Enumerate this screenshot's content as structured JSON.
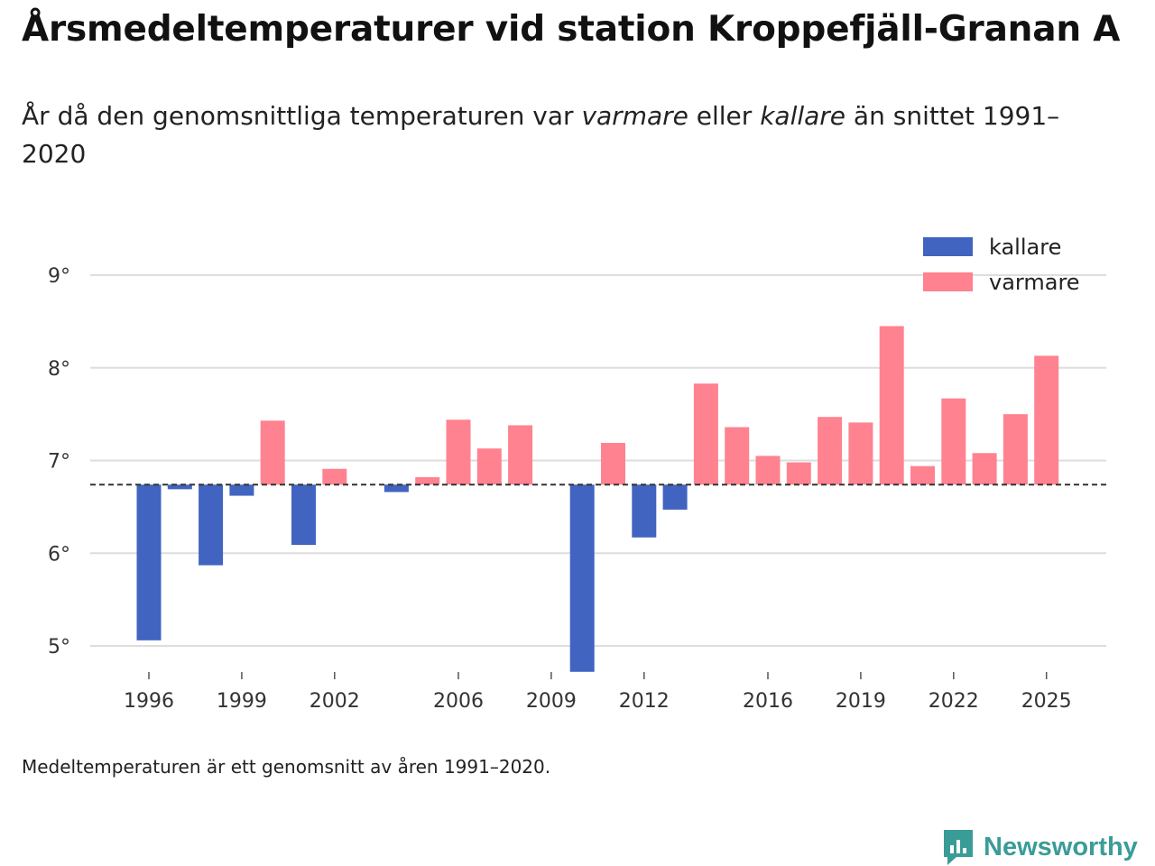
{
  "chart_data": {
    "type": "bar",
    "title": "Årsmedeltemperaturer vid station Kroppefjäll-Granan A",
    "subtitle_parts": [
      "År då den genomsnittliga temperaturen var ",
      "varmare",
      " eller ",
      "kallare",
      " än snittet 1991–2020"
    ],
    "note": "Medeltemperaturen är ett genomsnitt av åren 1991–2020.",
    "baseline": 6.74,
    "ylim": [
      4.7,
      9.5
    ],
    "xlim": [
      1993.5,
      2026.5
    ],
    "yticks": [
      5,
      6,
      7,
      8,
      9
    ],
    "ytick_labels": [
      "5°",
      "6°",
      "7°",
      "8°",
      "9°"
    ],
    "xticks": [
      1996,
      1999,
      2002,
      2006,
      2009,
      2012,
      2016,
      2019,
      2022,
      2025
    ],
    "xtick_labels": [
      "1996",
      "1999",
      "2002",
      "2006",
      "2009",
      "2012",
      "2016",
      "2019",
      "2022",
      "2025"
    ],
    "legend": [
      {
        "name": "kallare",
        "color": "#4164c0"
      },
      {
        "name": "varmare",
        "color": "#ff8290"
      }
    ],
    "colors": {
      "kallare": "#4164c0",
      "varmare": "#ff8290",
      "grid": "#dddddd",
      "baseline": "#333333"
    },
    "series": [
      {
        "year": 1996,
        "value": 5.06
      },
      {
        "year": 1997,
        "value": 6.69
      },
      {
        "year": 1998,
        "value": 5.87
      },
      {
        "year": 1999,
        "value": 6.62
      },
      {
        "year": 2000,
        "value": 7.43
      },
      {
        "year": 2001,
        "value": 6.09
      },
      {
        "year": 2002,
        "value": 6.91
      },
      {
        "year": 2004,
        "value": 6.66
      },
      {
        "year": 2005,
        "value": 6.82
      },
      {
        "year": 2006,
        "value": 7.44
      },
      {
        "year": 2007,
        "value": 7.13
      },
      {
        "year": 2008,
        "value": 7.38
      },
      {
        "year": 2010,
        "value": 4.72
      },
      {
        "year": 2011,
        "value": 7.19
      },
      {
        "year": 2012,
        "value": 6.17
      },
      {
        "year": 2013,
        "value": 6.47
      },
      {
        "year": 2014,
        "value": 7.83
      },
      {
        "year": 2015,
        "value": 7.36
      },
      {
        "year": 2016,
        "value": 7.05
      },
      {
        "year": 2017,
        "value": 6.98
      },
      {
        "year": 2018,
        "value": 7.47
      },
      {
        "year": 2019,
        "value": 7.41
      },
      {
        "year": 2020,
        "value": 8.45
      },
      {
        "year": 2021,
        "value": 6.94
      },
      {
        "year": 2022,
        "value": 7.67
      },
      {
        "year": 2023,
        "value": 7.08
      },
      {
        "year": 2024,
        "value": 7.5
      },
      {
        "year": 2025,
        "value": 8.13
      }
    ]
  },
  "brand": {
    "name": "Newsworthy",
    "color": "#3a9c97",
    "icon": "newsworthy-logo-icon"
  }
}
